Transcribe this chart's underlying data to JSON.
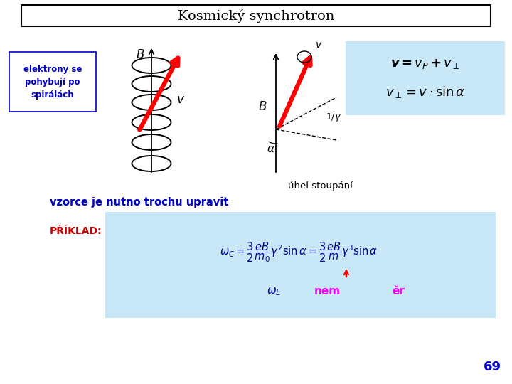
{
  "title": "Kosmický synchrotron",
  "bg_color": "#ffffff",
  "title_text_color": "#000000",
  "label_elektrony_color": "#0000cc",
  "label_elektrony_text": "elektrony se\npohybují po\nspirálách",
  "label_vzorce_color": "#0000cc",
  "label_vzorce_text": "vzorce je nutno trochu upravit",
  "label_priklad_color": "#cc0000",
  "label_priklad_text": "PŘÍKLAD:",
  "formula_bg": "#c8e8f8",
  "uhel_text": "úhel stoupání",
  "uhel_color": "#000000",
  "page_number": "69",
  "page_color": "#0000cc",
  "omega_L_color": "#0000aa",
  "nem_color": "#ff00ff",
  "er_color": "#ff00ff"
}
